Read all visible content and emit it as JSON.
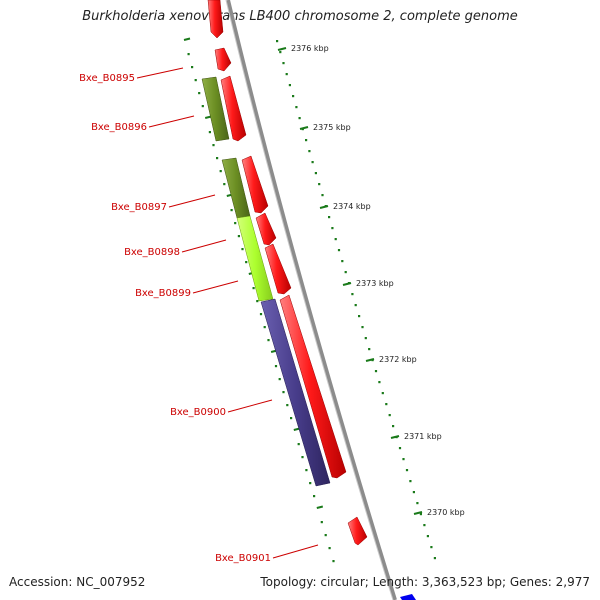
{
  "title": "Burkholderia xenovorans LB400 chromosome 2, complete genome",
  "footer": {
    "accession_label": "Accession:",
    "accession": "NC_007952",
    "topology_text": "Topology: circular; Length: 3,363,523 bp; Genes: 2,977"
  },
  "colors": {
    "forward_gene": "#ff1a1a",
    "backbone": "#8c8c8c",
    "olive_feature": "#6b8e23",
    "lime_feature": "#adff2f",
    "purple_feature": "#483d8b",
    "label": "#cc0000",
    "scale_tick": "#1a7a1a",
    "next_feature": "#0000ee"
  },
  "scale": {
    "unit": "kbp",
    "ticks": [
      {
        "label": "2376 kbp",
        "value": 2376
      },
      {
        "label": "2375 kbp",
        "value": 2375
      },
      {
        "label": "2374 kbp",
        "value": 2374
      },
      {
        "label": "2373 kbp",
        "value": 2373
      },
      {
        "label": "2372 kbp",
        "value": 2372
      },
      {
        "label": "2371 kbp",
        "value": 2371
      },
      {
        "label": "2370 kbp",
        "value": 2370
      }
    ]
  },
  "genes": [
    {
      "id": "Bxe_B0895",
      "label": "Bxe_B0895"
    },
    {
      "id": "Bxe_B0896",
      "label": "Bxe_B0896"
    },
    {
      "id": "Bxe_B0897",
      "label": "Bxe_B0897"
    },
    {
      "id": "Bxe_B0898",
      "label": "Bxe_B0898"
    },
    {
      "id": "Bxe_B0899",
      "label": "Bxe_B0899"
    },
    {
      "id": "Bxe_B0900",
      "label": "Bxe_B0900"
    },
    {
      "id": "Bxe_B0901",
      "label": "Bxe_B0901"
    }
  ]
}
